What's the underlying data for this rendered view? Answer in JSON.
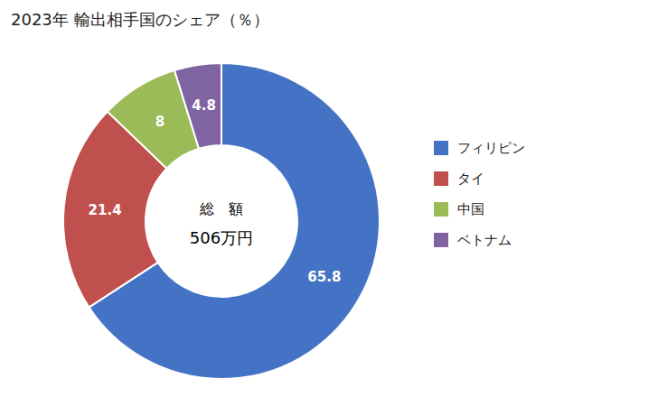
{
  "chart_data": {
    "type": "pie",
    "title": "2023年 輸出相手国のシェア（％）",
    "categories": [
      "フィリピン",
      "タイ",
      "中国",
      "ベトナム"
    ],
    "values": [
      65.8,
      21.4,
      8.0,
      4.8
    ],
    "colors": [
      "#4472C4",
      "#C0504D",
      "#9BBB59",
      "#8064A2"
    ],
    "annotations": [
      "総　額",
      "506万円"
    ],
    "data_labels": true,
    "legend": "right"
  }
}
